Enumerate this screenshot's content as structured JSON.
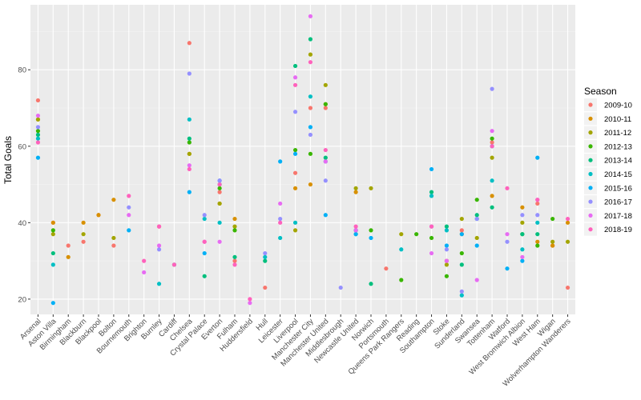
{
  "chart_data": {
    "type": "scatter",
    "ylabel": "Total Goals",
    "xlabel": "",
    "ylim": [
      16,
      97
    ],
    "y_ticks": [
      20,
      40,
      60,
      80
    ],
    "grid": true,
    "legend_position": "right",
    "categories": [
      "Arsenal",
      "Aston Villa",
      "Birmingham",
      "Blackburn",
      "Blackpool",
      "Bolton",
      "Bournemouth",
      "Brighton",
      "Burnley",
      "Cardiff",
      "Chelsea",
      "Crystal Palace",
      "Everton",
      "Fulham",
      "Huddersfield",
      "Hull",
      "Leicester",
      "Liverpool",
      "Manchester City",
      "Manchester United",
      "Middlesbrough",
      "Newcastle United",
      "Norwich",
      "Portsmouth",
      "Queens Park Rangers",
      "Reading",
      "Southampton",
      "Stoke",
      "Sunderland",
      "Swansea",
      "Tottenham",
      "Watford",
      "West Bromwich Albion",
      "West Ham",
      "Wigan",
      "Wolverhampton Wanderers"
    ],
    "legend": {
      "title": "Season",
      "entries": [
        {
          "name": "2009-10",
          "color": "#F8766D"
        },
        {
          "name": "2010-11",
          "color": "#D89000"
        },
        {
          "name": "2011-12",
          "color": "#A3A500"
        },
        {
          "name": "2012-13",
          "color": "#39B600"
        },
        {
          "name": "2013-14",
          "color": "#00BF7D"
        },
        {
          "name": "2014-15",
          "color": "#00BFC4"
        },
        {
          "name": "2015-16",
          "color": "#00B0F6"
        },
        {
          "name": "2016-17",
          "color": "#9590FF"
        },
        {
          "name": "2017-18",
          "color": "#E76BF3"
        },
        {
          "name": "2018-19",
          "color": "#FF62BC"
        }
      ]
    },
    "series": [
      {
        "name": "2009-10",
        "points": [
          [
            "Arsenal",
            72
          ],
          [
            "Aston Villa",
            40
          ],
          [
            "Birmingham",
            34
          ],
          [
            "Blackburn",
            35
          ],
          [
            "Blackpool",
            42
          ],
          [
            "Bolton",
            34
          ],
          [
            "Burnley",
            39
          ],
          [
            "Chelsea",
            87
          ],
          [
            "Everton",
            48
          ],
          [
            "Fulham",
            30
          ],
          [
            "Hull",
            23
          ],
          [
            "Liverpool",
            53
          ],
          [
            "Manchester City",
            70
          ],
          [
            "Manchester United",
            70
          ],
          [
            "Portsmouth",
            28
          ],
          [
            "Stoke",
            30
          ],
          [
            "Sunderland",
            38
          ],
          [
            "Tottenham",
            61
          ],
          [
            "West Ham",
            45
          ],
          [
            "Wigan",
            34
          ],
          [
            "Wolverhampton Wanderers",
            23
          ]
        ]
      },
      {
        "name": "2010-11",
        "points": [
          [
            "Arsenal",
            67
          ],
          [
            "Aston Villa",
            40
          ],
          [
            "Birmingham",
            31
          ],
          [
            "Blackburn",
            40
          ],
          [
            "Blackpool",
            42
          ],
          [
            "Bolton",
            46
          ],
          [
            "Chelsea",
            58
          ],
          [
            "Everton",
            45
          ],
          [
            "Fulham",
            41
          ],
          [
            "Liverpool",
            49
          ],
          [
            "Manchester City",
            50
          ],
          [
            "Manchester United",
            71
          ],
          [
            "Newcastle United",
            48
          ],
          [
            "Stoke",
            30
          ],
          [
            "Sunderland",
            37
          ],
          [
            "Tottenham",
            47
          ],
          [
            "West Bromwich Albion",
            44
          ],
          [
            "West Ham",
            35
          ],
          [
            "Wigan",
            34
          ],
          [
            "Wolverhampton Wanderers",
            40
          ]
        ]
      },
      {
        "name": "2011-12",
        "points": [
          [
            "Arsenal",
            67
          ],
          [
            "Aston Villa",
            37
          ],
          [
            "Blackburn",
            37
          ],
          [
            "Bolton",
            36
          ],
          [
            "Chelsea",
            58
          ],
          [
            "Everton",
            45
          ],
          [
            "Fulham",
            39
          ],
          [
            "Liverpool",
            38
          ],
          [
            "Manchester City",
            84
          ],
          [
            "Manchester United",
            76
          ],
          [
            "Newcastle United",
            49
          ],
          [
            "Norwich",
            49
          ],
          [
            "Queens Park Rangers",
            37
          ],
          [
            "Stoke",
            29
          ],
          [
            "Sunderland",
            41
          ],
          [
            "Swansea",
            36
          ],
          [
            "Tottenham",
            57
          ],
          [
            "West Bromwich Albion",
            40
          ],
          [
            "Wigan",
            35
          ],
          [
            "Wolverhampton Wanderers",
            35
          ]
        ]
      },
      {
        "name": "2012-13",
        "points": [
          [
            "Arsenal",
            64
          ],
          [
            "Aston Villa",
            38
          ],
          [
            "Chelsea",
            61
          ],
          [
            "Everton",
            49
          ],
          [
            "Fulham",
            38
          ],
          [
            "Liverpool",
            59
          ],
          [
            "Manchester City",
            58
          ],
          [
            "Manchester United",
            71
          ],
          [
            "Newcastle United",
            38
          ],
          [
            "Norwich",
            38
          ],
          [
            "Queens Park Rangers",
            25
          ],
          [
            "Reading",
            37
          ],
          [
            "Southampton",
            36
          ],
          [
            "Stoke",
            26
          ],
          [
            "Sunderland",
            32
          ],
          [
            "Swansea",
            46
          ],
          [
            "Tottenham",
            62
          ],
          [
            "West Bromwich Albion",
            37
          ],
          [
            "West Ham",
            34
          ],
          [
            "Wigan",
            41
          ]
        ]
      },
      {
        "name": "2013-14",
        "points": [
          [
            "Arsenal",
            63
          ],
          [
            "Aston Villa",
            32
          ],
          [
            "Cardiff",
            29
          ],
          [
            "Chelsea",
            62
          ],
          [
            "Crystal Palace",
            26
          ],
          [
            "Everton",
            50
          ],
          [
            "Fulham",
            31
          ],
          [
            "Hull",
            30
          ],
          [
            "Liverpool",
            81
          ],
          [
            "Manchester City",
            88
          ],
          [
            "Manchester United",
            57
          ],
          [
            "Newcastle United",
            37
          ],
          [
            "Norwich",
            24
          ],
          [
            "Southampton",
            48
          ],
          [
            "Stoke",
            39
          ],
          [
            "Sunderland",
            29
          ],
          [
            "Swansea",
            42
          ],
          [
            "Tottenham",
            44
          ],
          [
            "West Bromwich Albion",
            37
          ],
          [
            "West Ham",
            37
          ]
        ]
      },
      {
        "name": "2014-15",
        "points": [
          [
            "Arsenal",
            62
          ],
          [
            "Aston Villa",
            29
          ],
          [
            "Burnley",
            24
          ],
          [
            "Chelsea",
            67
          ],
          [
            "Crystal Palace",
            41
          ],
          [
            "Everton",
            40
          ],
          [
            "Hull",
            31
          ],
          [
            "Leicester",
            36
          ],
          [
            "Liverpool",
            40
          ],
          [
            "Manchester City",
            73
          ],
          [
            "Manchester United",
            56
          ],
          [
            "Newcastle United",
            38
          ],
          [
            "Queens Park Rangers",
            33
          ],
          [
            "Southampton",
            47
          ],
          [
            "Stoke",
            38
          ],
          [
            "Sunderland",
            21
          ],
          [
            "Swansea",
            41
          ],
          [
            "Tottenham",
            51
          ],
          [
            "West Bromwich Albion",
            33
          ],
          [
            "West Ham",
            40
          ]
        ]
      },
      {
        "name": "2015-16",
        "points": [
          [
            "Arsenal",
            57
          ],
          [
            "Aston Villa",
            19
          ],
          [
            "Bournemouth",
            38
          ],
          [
            "Chelsea",
            48
          ],
          [
            "Crystal Palace",
            32
          ],
          [
            "Everton",
            51
          ],
          [
            "Leicester",
            56
          ],
          [
            "Liverpool",
            58
          ],
          [
            "Manchester City",
            65
          ],
          [
            "Manchester United",
            42
          ],
          [
            "Newcastle United",
            37
          ],
          [
            "Norwich",
            36
          ],
          [
            "Southampton",
            54
          ],
          [
            "Stoke",
            34
          ],
          [
            "Sunderland",
            37
          ],
          [
            "Swansea",
            34
          ],
          [
            "Tottenham",
            60
          ],
          [
            "Watford",
            28
          ],
          [
            "West Bromwich Albion",
            30
          ],
          [
            "West Ham",
            57
          ]
        ]
      },
      {
        "name": "2016-17",
        "points": [
          [
            "Arsenal",
            65
          ],
          [
            "Bournemouth",
            44
          ],
          [
            "Burnley",
            33
          ],
          [
            "Chelsea",
            79
          ],
          [
            "Crystal Palace",
            42
          ],
          [
            "Everton",
            51
          ],
          [
            "Hull",
            32
          ],
          [
            "Leicester",
            41
          ],
          [
            "Liverpool",
            69
          ],
          [
            "Manchester City",
            63
          ],
          [
            "Manchester United",
            51
          ],
          [
            "Middlesbrough",
            23
          ],
          [
            "Southampton",
            39
          ],
          [
            "Stoke",
            33
          ],
          [
            "Sunderland",
            22
          ],
          [
            "Swansea",
            41
          ],
          [
            "Tottenham",
            75
          ],
          [
            "Watford",
            35
          ],
          [
            "West Bromwich Albion",
            42
          ],
          [
            "West Ham",
            42
          ]
        ]
      },
      {
        "name": "2017-18",
        "points": [
          [
            "Arsenal",
            68
          ],
          [
            "Bournemouth",
            42
          ],
          [
            "Brighton",
            27
          ],
          [
            "Burnley",
            34
          ],
          [
            "Chelsea",
            55
          ],
          [
            "Crystal Palace",
            35
          ],
          [
            "Everton",
            35
          ],
          [
            "Huddersfield",
            19
          ],
          [
            "Leicester",
            45
          ],
          [
            "Liverpool",
            78
          ],
          [
            "Manchester City",
            94
          ],
          [
            "Manchester United",
            56
          ],
          [
            "Newcastle United",
            38
          ],
          [
            "Southampton",
            32
          ],
          [
            "Stoke",
            30
          ],
          [
            "Swansea",
            25
          ],
          [
            "Tottenham",
            64
          ],
          [
            "Watford",
            37
          ],
          [
            "West Bromwich Albion",
            31
          ],
          [
            "West Ham",
            46
          ]
        ]
      },
      {
        "name": "2018-19",
        "points": [
          [
            "Arsenal",
            61
          ],
          [
            "Bournemouth",
            47
          ],
          [
            "Brighton",
            30
          ],
          [
            "Burnley",
            39
          ],
          [
            "Cardiff",
            29
          ],
          [
            "Chelsea",
            54
          ],
          [
            "Crystal Palace",
            35
          ],
          [
            "Everton",
            50
          ],
          [
            "Fulham",
            29
          ],
          [
            "Huddersfield",
            20
          ],
          [
            "Leicester",
            40
          ],
          [
            "Liverpool",
            76
          ],
          [
            "Manchester City",
            82
          ],
          [
            "Manchester United",
            59
          ],
          [
            "Newcastle United",
            39
          ],
          [
            "Southampton",
            39
          ],
          [
            "Tottenham",
            60
          ],
          [
            "Watford",
            49
          ],
          [
            "West Ham",
            46
          ],
          [
            "Wolverhampton Wanderers",
            41
          ]
        ]
      }
    ]
  }
}
